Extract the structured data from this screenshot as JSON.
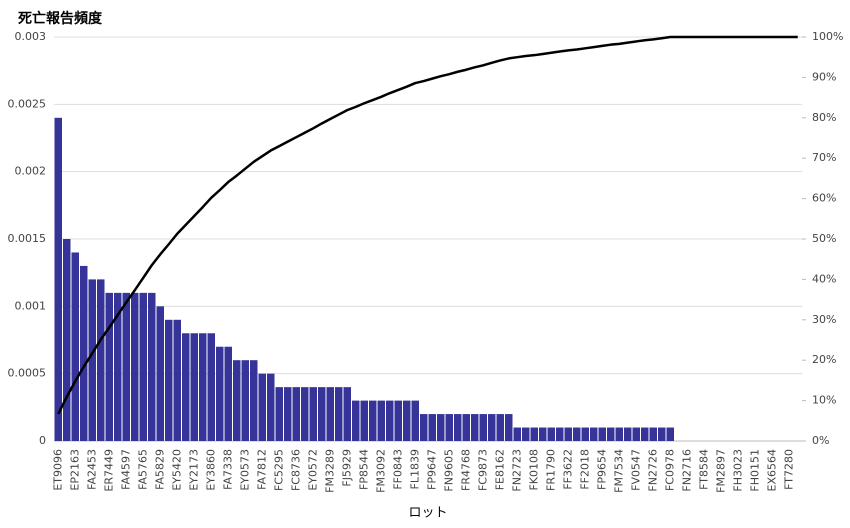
{
  "chart_data": {
    "type": "pareto",
    "title": "死亡報告頻度",
    "x_label": "ロット",
    "categories": [
      "ET9096",
      null,
      "EP2163",
      null,
      "FA2453",
      null,
      "ER7449",
      null,
      "FA4597",
      null,
      "FA5765",
      null,
      "FA5829",
      null,
      "EY5420",
      null,
      "EY2173",
      null,
      "EY3860",
      null,
      "FA7338",
      null,
      "EY0573",
      null,
      "FA7812",
      null,
      "FC5295",
      null,
      "FC8736",
      null,
      "EY0572",
      null,
      "FM3289",
      null,
      "FJ5929",
      null,
      "FP8544",
      null,
      "FM3092",
      null,
      "FF0843",
      null,
      "FL1839",
      null,
      "FP9647",
      null,
      "FN9605",
      null,
      "FR4768",
      null,
      "FC9873",
      null,
      "FE8162",
      null,
      "FN2723",
      null,
      "FK0108",
      null,
      "FR1790",
      null,
      "FF3622",
      null,
      "FF2018",
      null,
      "FP9654",
      null,
      "FM7534",
      null,
      "FV0547",
      null,
      "FN2726",
      null,
      "FC0978",
      null,
      "FN2716",
      null,
      "FT8584",
      null,
      "FM2897",
      null,
      "FH3023",
      null,
      "FH0151",
      null,
      "EX6564",
      null,
      "FT7280",
      null
    ],
    "series": [
      {
        "name": "死亡報告頻度",
        "type": "bar",
        "color": "#363399",
        "values": [
          0.0024,
          0.0015,
          0.0014,
          0.0013,
          0.0012,
          0.0012,
          0.0011,
          0.0011,
          0.0011,
          0.0011,
          0.0011,
          0.0011,
          0.001,
          0.0009,
          0.0009,
          0.0008,
          0.0008,
          0.0008,
          0.0008,
          0.0007,
          0.0007,
          0.0006,
          0.0006,
          0.0006,
          0.0005,
          0.0005,
          0.0004,
          0.0004,
          0.0004,
          0.0004,
          0.0004,
          0.0004,
          0.0004,
          0.0004,
          0.0004,
          0.0003,
          0.0003,
          0.0003,
          0.0003,
          0.0003,
          0.0003,
          0.0003,
          0.0003,
          0.0002,
          0.0002,
          0.0002,
          0.0002,
          0.0002,
          0.0002,
          0.0002,
          0.0002,
          0.0002,
          0.0002,
          0.0002,
          0.0001,
          0.0001,
          0.0001,
          0.0001,
          0.0001,
          0.0001,
          0.0001,
          0.0001,
          0.0001,
          0.0001,
          0.0001,
          0.0001,
          0.0001,
          0.0001,
          0.0001,
          0.0001,
          0.0001,
          0.0001,
          0.0001,
          0,
          0,
          0,
          0,
          0,
          0,
          0,
          0,
          0,
          0,
          0,
          0,
          0,
          0,
          0
        ]
      },
      {
        "type": "line",
        "axis": "y2",
        "color": "#000000",
        "values": [
          6.7,
          10.9,
          14.8,
          18.4,
          21.7,
          25.1,
          28.1,
          31.2,
          34.3,
          37.3,
          40.4,
          43.5,
          46.2,
          48.7,
          51.3,
          53.5,
          55.7,
          57.9,
          60.2,
          62.1,
          64.1,
          65.7,
          67.4,
          69.1,
          70.5,
          71.9,
          73.0,
          74.1,
          75.2,
          76.3,
          77.4,
          78.6,
          79.7,
          80.8,
          81.9,
          82.7,
          83.6,
          84.4,
          85.2,
          86.1,
          86.9,
          87.7,
          88.6,
          89.1,
          89.7,
          90.3,
          90.8,
          91.4,
          91.9,
          92.5,
          93.0,
          93.6,
          94.2,
          94.7,
          95.0,
          95.3,
          95.5,
          95.8,
          96.1,
          96.4,
          96.7,
          96.9,
          97.2,
          97.5,
          97.8,
          98.1,
          98.3,
          98.6,
          98.9,
          99.2,
          99.4,
          99.7,
          100,
          100,
          100,
          100,
          100,
          100,
          100,
          100,
          100,
          100,
          100,
          100,
          100,
          100,
          100,
          100
        ]
      }
    ],
    "ylim": [
      0,
      0.003
    ],
    "yticks": [
      0,
      0.0005,
      0.001,
      0.0015,
      0.002,
      0.0025,
      0.003
    ],
    "y2lim": [
      0,
      100
    ],
    "y2ticks": [
      {
        "value": 0,
        "label": "0%"
      },
      {
        "value": 10,
        "label": "10%"
      },
      {
        "value": 20,
        "label": "20%"
      },
      {
        "value": 30,
        "label": "30%"
      },
      {
        "value": 40,
        "label": "40%"
      },
      {
        "value": 50,
        "label": "50%"
      },
      {
        "value": 60,
        "label": "60%"
      },
      {
        "value": 70,
        "label": "70%"
      },
      {
        "value": 80,
        "label": "80%"
      },
      {
        "value": 90,
        "label": "90%"
      },
      {
        "value": 100,
        "label": "100%"
      }
    ],
    "grid": true
  }
}
